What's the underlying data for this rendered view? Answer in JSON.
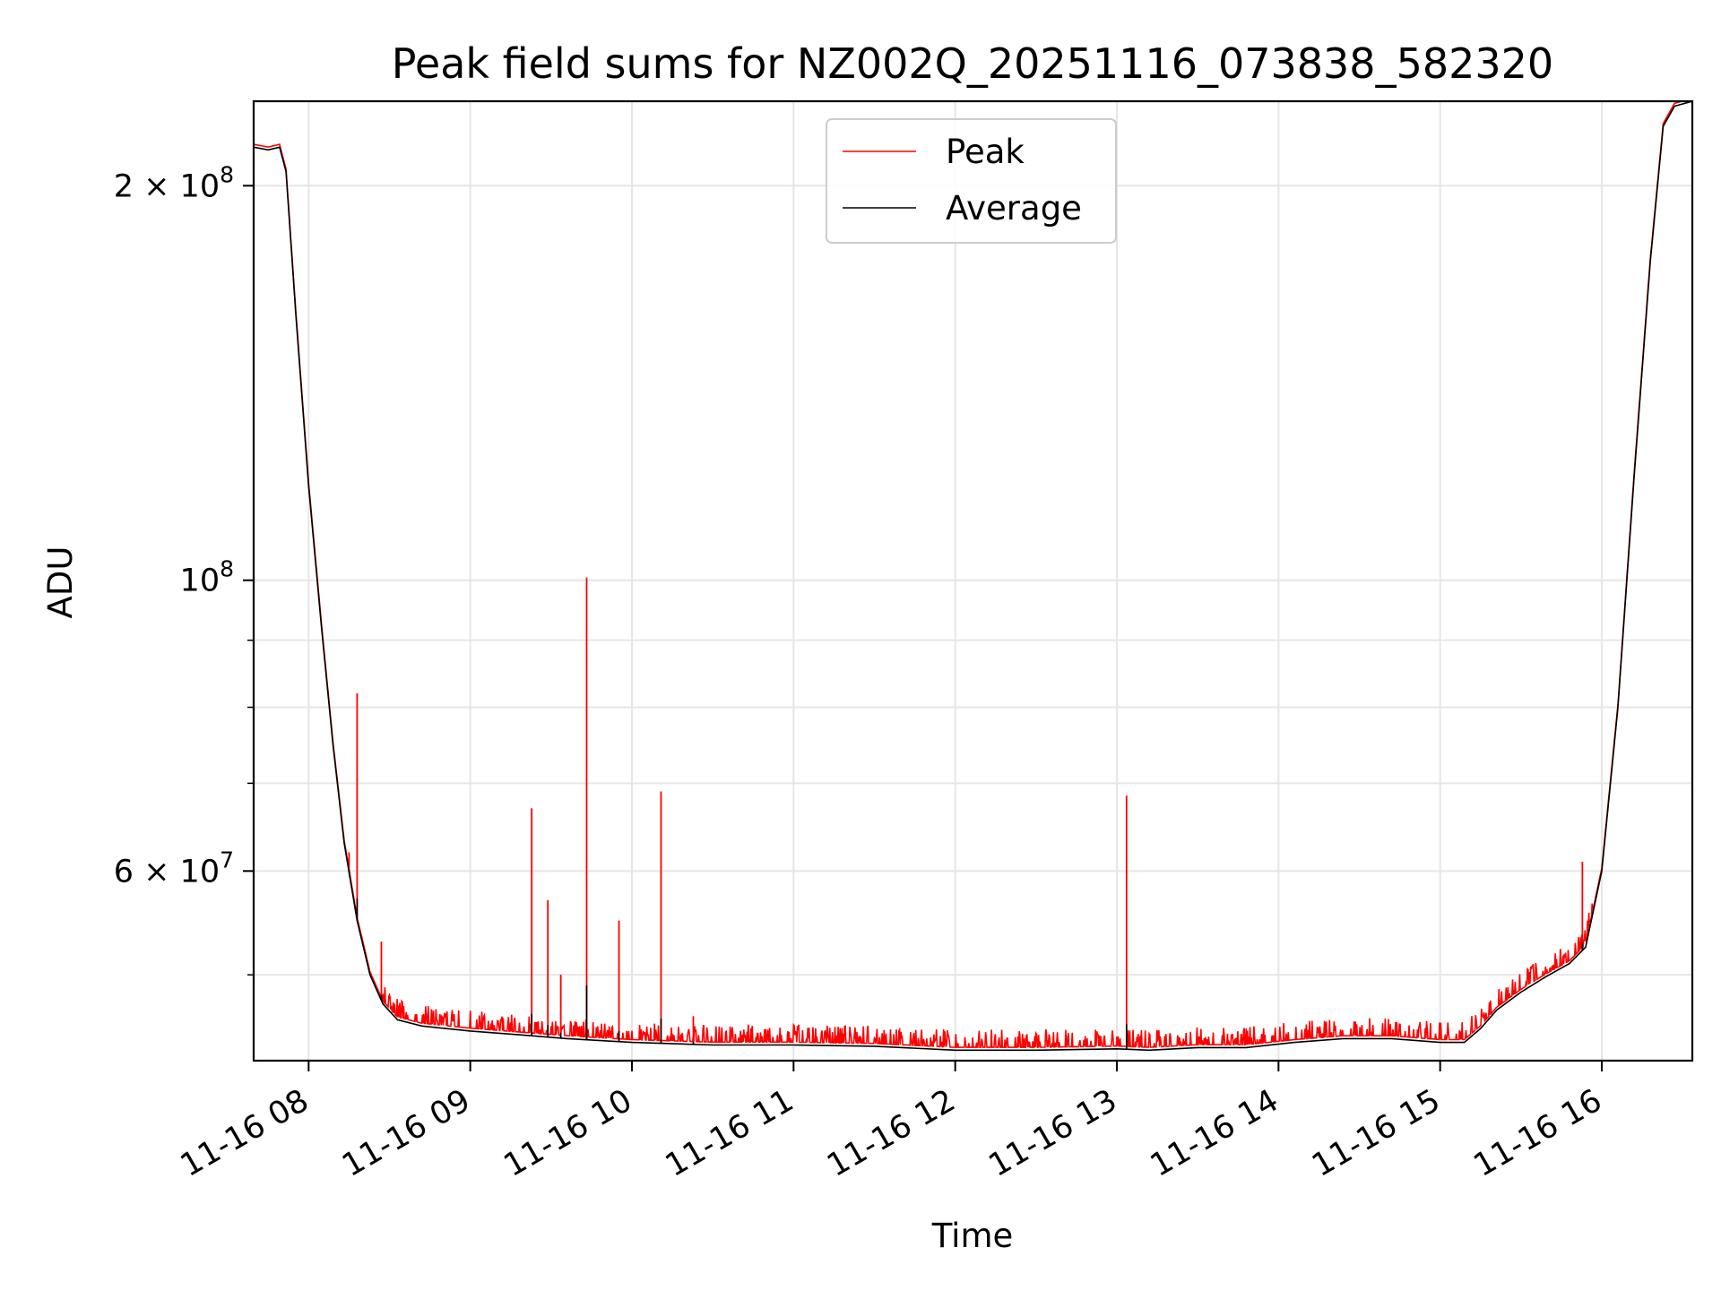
{
  "chart_data": {
    "type": "line",
    "title": "Peak field sums for NZ002Q_20251116_073838_582320",
    "xlabel": "Time",
    "ylabel": "ADU",
    "yscale": "log",
    "ylim": [
      43000000,
      232000000
    ],
    "xlim_hours": [
      7.66,
      16.56
    ],
    "grid": true,
    "legend": {
      "location": "upper center",
      "entries": [
        {
          "name": "Peak",
          "color": "#ff0000"
        },
        {
          "name": "Average",
          "color": "#000000"
        }
      ]
    },
    "x_ticks": [
      {
        "label": "11-16 08",
        "value": 8
      },
      {
        "label": "11-16 09",
        "value": 9
      },
      {
        "label": "11-16 10",
        "value": 10
      },
      {
        "label": "11-16 11",
        "value": 11
      },
      {
        "label": "11-16 12",
        "value": 12
      },
      {
        "label": "11-16 13",
        "value": 13
      },
      {
        "label": "11-16 14",
        "value": 14
      },
      {
        "label": "11-16 15",
        "value": 15
      },
      {
        "label": "11-16 16",
        "value": 16
      }
    ],
    "y_ticks_major": [
      {
        "mantissa": "2 × 10",
        "exponent": "8",
        "value": 200000000
      },
      {
        "mantissa": "10",
        "exponent": "8",
        "value": 100000000
      },
      {
        "mantissa": "6 × 10",
        "exponent": "7",
        "value": 60000000
      }
    ],
    "y_ticks_minor": [
      50000000,
      70000000,
      80000000,
      90000000
    ],
    "series": [
      {
        "name": "Average",
        "color": "#000000",
        "points": [
          [
            7.66,
            214000000
          ],
          [
            7.75,
            213000000
          ],
          [
            7.82,
            214000000
          ],
          [
            7.86,
            205000000
          ],
          [
            7.92,
            160000000
          ],
          [
            8.0,
            118000000
          ],
          [
            8.08,
            92000000
          ],
          [
            8.15,
            75000000
          ],
          [
            8.22,
            63000000
          ],
          [
            8.3,
            55000000
          ],
          [
            8.38,
            50000000
          ],
          [
            8.46,
            47500000
          ],
          [
            8.55,
            46200000
          ],
          [
            8.7,
            45700000
          ],
          [
            9.0,
            45300000
          ],
          [
            9.3,
            45000000
          ],
          [
            9.6,
            44700000
          ],
          [
            10.0,
            44400000
          ],
          [
            10.5,
            44200000
          ],
          [
            11.0,
            44200000
          ],
          [
            11.5,
            44100000
          ],
          [
            12.0,
            43800000
          ],
          [
            12.5,
            43800000
          ],
          [
            13.0,
            43900000
          ],
          [
            13.2,
            43800000
          ],
          [
            13.5,
            44000000
          ],
          [
            13.8,
            44000000
          ],
          [
            14.1,
            44400000
          ],
          [
            14.4,
            44700000
          ],
          [
            14.7,
            44700000
          ],
          [
            15.0,
            44400000
          ],
          [
            15.15,
            44400000
          ],
          [
            15.25,
            45500000
          ],
          [
            15.35,
            47000000
          ],
          [
            15.5,
            48500000
          ],
          [
            15.65,
            49800000
          ],
          [
            15.8,
            51000000
          ],
          [
            15.9,
            52500000
          ],
          [
            16.0,
            60000000
          ],
          [
            16.1,
            80000000
          ],
          [
            16.2,
            120000000
          ],
          [
            16.3,
            175000000
          ],
          [
            16.38,
            222000000
          ],
          [
            16.45,
            230000000
          ],
          [
            16.56,
            232000000
          ]
        ]
      },
      {
        "name": "Peak",
        "color": "#ff0000",
        "spikes": [
          [
            8.25,
            62000000
          ],
          [
            8.3,
            82000000
          ],
          [
            8.45,
            53000000
          ],
          [
            9.38,
            67000000
          ],
          [
            9.48,
            57000000
          ],
          [
            9.56,
            50000000
          ],
          [
            9.72,
            100500000
          ],
          [
            9.92,
            55000000
          ],
          [
            10.18,
            69000000
          ],
          [
            10.38,
            46500000
          ],
          [
            13.06,
            68500000
          ],
          [
            15.88,
            61000000
          ]
        ]
      }
    ]
  }
}
